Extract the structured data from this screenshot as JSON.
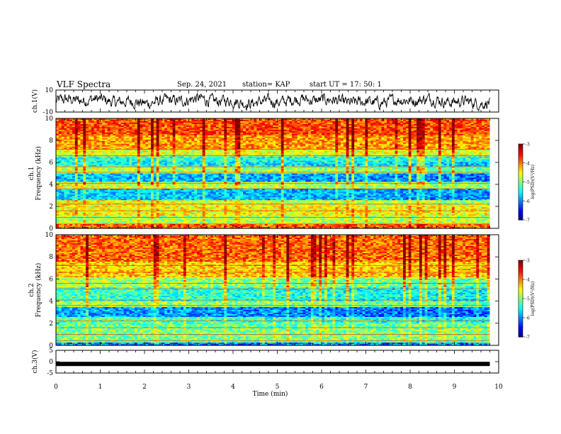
{
  "header": {
    "title": "VLF Spectra",
    "date": "Sep. 24, 2021",
    "station": "station= KAP",
    "start": "start  UT  =   17: 50: 1"
  },
  "chart_data": [
    {
      "type": "line",
      "name": "ch1-waveform",
      "ylabel": "ch.1(V)",
      "ylim": [
        -10,
        10
      ],
      "yticks": [
        "10",
        "-10"
      ],
      "xlim": [
        0,
        10
      ],
      "color": "#000000"
    },
    {
      "type": "heatmap",
      "name": "ch1-spectrogram",
      "ylabel": "ch.1\nFrequency  (kHz)",
      "ylim": [
        0,
        10
      ],
      "yticks": [
        "0",
        "2",
        "4",
        "6",
        "8",
        "10"
      ],
      "xlim": [
        0,
        9.8
      ],
      "bands": [
        {
          "range": [
            0,
            0.4
          ],
          "level": -3.9
        },
        {
          "range": [
            0.4,
            1.2
          ],
          "level": -4.8
        },
        {
          "range": [
            1.2,
            2.6
          ],
          "level": -4.5
        },
        {
          "range": [
            2.6,
            3.6
          ],
          "level": -5.6
        },
        {
          "range": [
            3.6,
            4.2
          ],
          "level": -4.6
        },
        {
          "range": [
            4.2,
            5.0
          ],
          "level": -5.7
        },
        {
          "range": [
            5.0,
            5.6
          ],
          "level": -4.7
        },
        {
          "range": [
            5.6,
            6.6
          ],
          "level": -5.4
        },
        {
          "range": [
            6.6,
            7.2
          ],
          "level": -4.6
        },
        {
          "range": [
            7.2,
            8.4
          ],
          "level": -4.1
        },
        {
          "range": [
            8.4,
            10
          ],
          "level": -3.8
        }
      ],
      "colorbar": {
        "label": "log(PSD)(V²/Hz)",
        "range": [
          -7,
          -3
        ],
        "ticks": [
          "-3",
          "-4",
          "-5",
          "-6",
          "-7"
        ]
      }
    },
    {
      "type": "heatmap",
      "name": "ch2-spectrogram",
      "ylabel": "ch.2\nFrequency  (kHz)",
      "ylim": [
        0,
        10
      ],
      "yticks": [
        "0",
        "2",
        "4",
        "6",
        "8",
        "10"
      ],
      "xlim": [
        0,
        9.8
      ],
      "bands": [
        {
          "range": [
            0,
            0.3
          ],
          "level": -6.0
        },
        {
          "range": [
            0.3,
            1.6
          ],
          "level": -5.0
        },
        {
          "range": [
            1.6,
            2.6
          ],
          "level": -5.1
        },
        {
          "range": [
            2.6,
            3.4
          ],
          "level": -5.8
        },
        {
          "range": [
            3.4,
            4.0
          ],
          "level": -4.8
        },
        {
          "range": [
            4.0,
            5.2
          ],
          "level": -5.2
        },
        {
          "range": [
            5.2,
            6.2
          ],
          "level": -4.8
        },
        {
          "range": [
            6.2,
            7.6
          ],
          "level": -4.3
        },
        {
          "range": [
            7.6,
            10
          ],
          "level": -3.9
        }
      ],
      "colorbar": {
        "label": "log(PSD)(V²/Hz)",
        "range": [
          -7,
          -3
        ],
        "ticks": [
          "-3",
          "-4",
          "-5",
          "-6",
          "-7"
        ]
      }
    },
    {
      "type": "line",
      "name": "ch3-signal",
      "ylabel": "ch.3(V)",
      "ylim": [
        -5,
        5
      ],
      "yticks": [
        "5",
        "0",
        "-5"
      ],
      "xlim": [
        0,
        10
      ],
      "value": -1,
      "xlabel": "Time  (min)",
      "xticks": [
        "0",
        "1",
        "2",
        "3",
        "4",
        "5",
        "6",
        "7",
        "8",
        "9",
        "10"
      ],
      "color": "#000000"
    }
  ]
}
